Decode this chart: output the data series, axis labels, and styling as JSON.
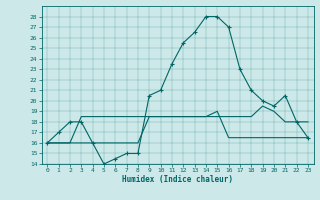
{
  "xlabel": "Humidex (Indice chaleur)",
  "bg_color": "#cce8e8",
  "line_color": "#006666",
  "xlim": [
    -0.5,
    23.5
  ],
  "ylim": [
    14,
    29
  ],
  "yticks": [
    14,
    15,
    16,
    17,
    18,
    19,
    20,
    21,
    22,
    23,
    24,
    25,
    26,
    27,
    28
  ],
  "xticks": [
    0,
    1,
    2,
    3,
    4,
    5,
    6,
    7,
    8,
    9,
    10,
    11,
    12,
    13,
    14,
    15,
    16,
    17,
    18,
    19,
    20,
    21,
    22,
    23
  ],
  "line1_x": [
    0,
    1,
    2,
    3,
    4,
    5,
    6,
    7,
    8,
    9,
    10,
    11,
    12,
    13,
    14,
    15,
    16,
    17,
    18,
    19,
    20,
    21,
    22,
    23
  ],
  "line1_y": [
    16,
    17,
    18,
    18,
    16,
    14,
    14.5,
    15,
    15,
    20.5,
    21,
    23.5,
    25.5,
    26.5,
    28,
    28,
    27,
    23,
    21,
    20,
    19.5,
    20.5,
    18,
    16.5
  ],
  "line2_x": [
    0,
    1,
    2,
    3,
    4,
    5,
    6,
    7,
    8,
    9,
    10,
    11,
    12,
    13,
    14,
    15,
    16,
    17,
    18,
    19,
    20,
    21,
    22,
    23
  ],
  "line2_y": [
    16,
    16,
    16,
    16,
    16,
    16,
    16,
    16,
    16,
    18.5,
    18.5,
    18.5,
    18.5,
    18.5,
    18.5,
    18.5,
    18.5,
    18.5,
    18.5,
    19.5,
    19,
    18,
    18,
    18
  ],
  "line3_x": [
    0,
    1,
    2,
    3,
    4,
    5,
    6,
    7,
    8,
    9,
    10,
    11,
    12,
    13,
    14,
    15,
    16,
    17,
    18,
    19,
    20,
    21,
    22,
    23
  ],
  "line3_y": [
    16,
    16,
    16,
    18.5,
    18.5,
    18.5,
    18.5,
    18.5,
    18.5,
    18.5,
    18.5,
    18.5,
    18.5,
    18.5,
    18.5,
    19,
    16.5,
    16.5,
    16.5,
    16.5,
    16.5,
    16.5,
    16.5,
    16.5
  ]
}
